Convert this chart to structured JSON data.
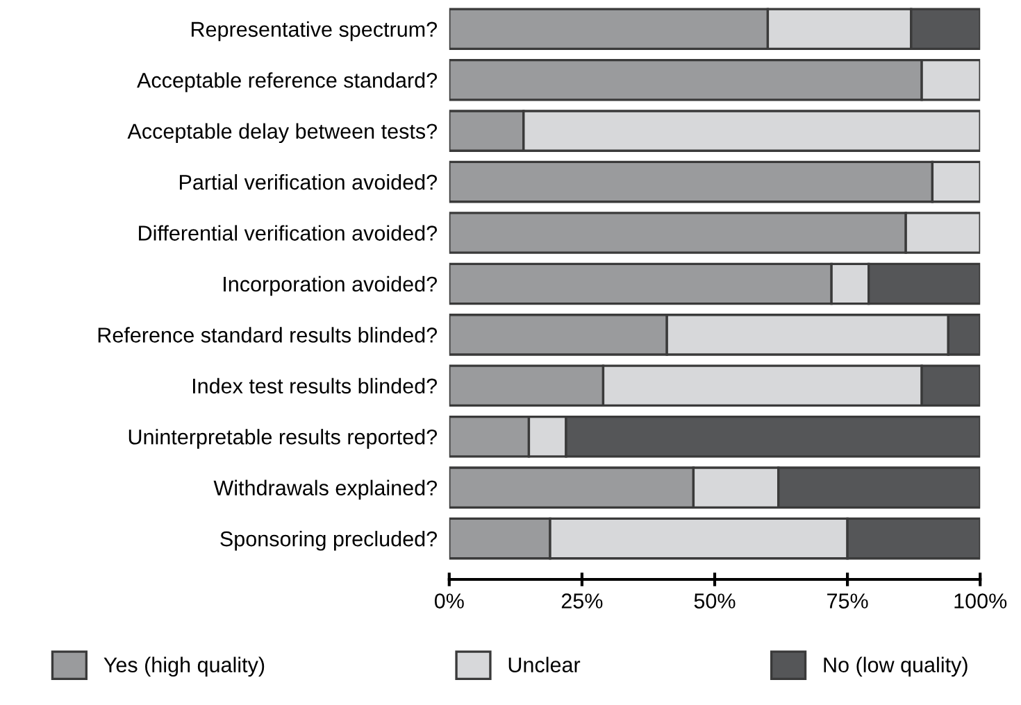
{
  "chart_data": {
    "type": "bar",
    "orientation": "horizontal",
    "stacked": true,
    "categories": [
      "Representative spectrum?",
      "Acceptable reference standard?",
      "Acceptable delay between tests?",
      "Partial verification avoided?",
      "Differential verification avoided?",
      "Incorporation avoided?",
      "Reference standard results blinded?",
      "Index test results blinded?",
      "Uninterpretable results reported?",
      "Withdrawals explained?",
      "Sponsoring precluded?"
    ],
    "series": [
      {
        "name": "Yes (high quality)",
        "color": "#9a9b9d",
        "values": [
          60,
          89,
          14,
          91,
          86,
          72,
          41,
          29,
          15,
          46,
          19
        ]
      },
      {
        "name": "Unclear",
        "color": "#d7d8da",
        "values": [
          27,
          11,
          86,
          9,
          14,
          7,
          53,
          60,
          7,
          16,
          56
        ]
      },
      {
        "name": "No (low quality)",
        "color": "#555658",
        "values": [
          13,
          0,
          0,
          0,
          0,
          21,
          6,
          11,
          78,
          38,
          25
        ]
      }
    ],
    "xlim": [
      0,
      100
    ],
    "xticks": [
      {
        "value": 0,
        "label": "0%"
      },
      {
        "value": 25,
        "label": "25%"
      },
      {
        "value": 50,
        "label": "50%"
      },
      {
        "value": 75,
        "label": "75%"
      },
      {
        "value": 100,
        "label": "100%"
      }
    ],
    "grid": false,
    "legend": "bottom"
  }
}
